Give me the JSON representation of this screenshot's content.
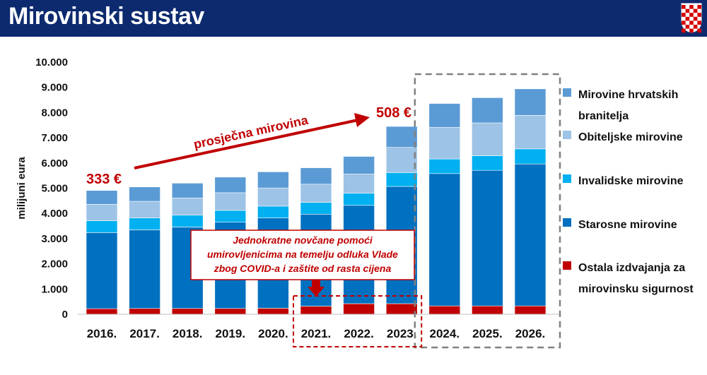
{
  "header": {
    "title": "Mirovinski sustav",
    "crest_icon": "croatian-coat-of-arms-icon",
    "background_color": "#0d2a6e"
  },
  "chart_data": {
    "type": "bar",
    "stacked": true,
    "ylabel": "milijuni eura",
    "ylim": [
      0,
      10000
    ],
    "yticks": [
      "0",
      "1.000",
      "2.000",
      "3.000",
      "4.000",
      "5.000",
      "6.000",
      "7.000",
      "8.000",
      "9.000",
      "10.000"
    ],
    "categories": [
      "2016.",
      "2017.",
      "2018.",
      "2019.",
      "2020.",
      "2021.",
      "2022.",
      "2023.",
      "2024.",
      "2025.",
      "2026."
    ],
    "series": [
      {
        "name": "Ostala izdvajanja za mirovinsku sigurnost",
        "color": "#c00000",
        "values": [
          220,
          230,
          230,
          230,
          240,
          320,
          420,
          420,
          330,
          330,
          330
        ]
      },
      {
        "name": "Starosne mirovine",
        "color": "#0070c0",
        "values": [
          3020,
          3120,
          3230,
          3420,
          3580,
          3650,
          3900,
          4650,
          5250,
          5380,
          5630
        ]
      },
      {
        "name": "Invalidske mirovine",
        "color": "#00b0f0",
        "values": [
          470,
          470,
          470,
          470,
          470,
          470,
          480,
          550,
          580,
          580,
          600
        ]
      },
      {
        "name": "Obiteljske mirovine",
        "color": "#9dc3e6",
        "values": [
          650,
          660,
          680,
          700,
          720,
          720,
          760,
          1000,
          1250,
          1300,
          1330
        ]
      },
      {
        "name": "Mirovine hrvatskih branitelja",
        "color": "#5b9bd5",
        "values": [
          550,
          570,
          590,
          620,
          640,
          650,
          700,
          830,
          950,
          1000,
          1050
        ]
      }
    ],
    "annotations": {
      "start_value": "333 €",
      "end_value": "508 €",
      "arrow_label": "prosječna mirovina",
      "covid_note": [
        "Jednokratne novčane pomoći",
        "umirovljenicima na temelju odluka Vlade",
        "zbog COVID-a i zaštite od rasta cijena"
      ],
      "highlight_years": [
        "2021.",
        "2022.",
        "2023."
      ],
      "projection_years": [
        "2024.",
        "2025.",
        "2026."
      ]
    },
    "colors": {
      "accent_red": "#c00000",
      "dashed_grey": "#808080"
    }
  }
}
